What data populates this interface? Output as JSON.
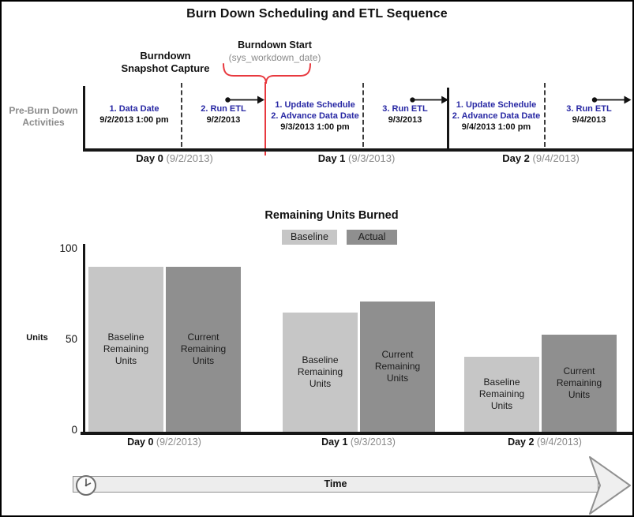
{
  "title": "Burn Down Scheduling and ETL Sequence",
  "timeline": {
    "row_label": "Pre-Burn Down\nActivities",
    "snapshot_label": "Burndown\nSnapshot Capture",
    "burndown_start": {
      "label": "Burndown Start",
      "sublabel": "(sys_workdown_date)"
    },
    "items": [
      {
        "steps": [
          "1. Data Date"
        ],
        "date": "9/2/2013 1:00 pm"
      },
      {
        "steps": [
          "2. Run ETL"
        ],
        "date": "9/2/2013",
        "arrow": true
      },
      {
        "steps": [
          "1. Update Schedule",
          "2. Advance Data Date"
        ],
        "date": "9/3/2013 1:00 pm"
      },
      {
        "steps": [
          "3. Run ETL"
        ],
        "date": "9/3/2013",
        "arrow": true
      },
      {
        "steps": [
          "1. Update Schedule",
          "2. Advance Data Date"
        ],
        "date": "9/4/2013 1:00 pm"
      },
      {
        "steps": [
          "3. Run ETL"
        ],
        "date": "9/4/2013",
        "arrow": true
      }
    ],
    "days": [
      {
        "name": "Day 0",
        "date": "(9/2/2013)"
      },
      {
        "name": "Day 1",
        "date": "(9/3/2013)"
      },
      {
        "name": "Day 2",
        "date": "(9/4/2013)"
      }
    ]
  },
  "chart_data": {
    "type": "bar",
    "title": "Remaining Units Burned",
    "ylabel": "Units",
    "ylim": [
      0,
      100
    ],
    "yticks": [
      100,
      50,
      0
    ],
    "grid": false,
    "legend_position": "top",
    "categories": [
      "Day 0 (9/2/2013)",
      "Day 1 (9/3/2013)",
      "Day 2 (9/4/2013)"
    ],
    "day_names": [
      "Day 0",
      "Day 1",
      "Day 2"
    ],
    "day_dates": [
      "(9/2/2013)",
      "(9/3/2013)",
      "(9/4/2013)"
    ],
    "series": [
      {
        "name": "Baseline",
        "color": "#c6c6c6",
        "values": [
          90,
          65,
          41
        ],
        "bar_label": "Baseline\nRemaining\nUnits"
      },
      {
        "name": "Actual",
        "color": "#8f8f8f",
        "values": [
          90,
          71,
          53
        ],
        "bar_label": "Current\nRemaining\nUnits"
      }
    ]
  },
  "footer": {
    "time_label": "Time",
    "icon": "clock-icon"
  },
  "colors": {
    "step_text_blue": "#2828a4",
    "annotation_red": "#e8393f",
    "muted_gray": "#8a8a8a",
    "baseline_fill": "#c6c6c6",
    "actual_fill": "#8f8f8f",
    "timebar_fill": "#ededed",
    "axis_black": "#161616"
  }
}
